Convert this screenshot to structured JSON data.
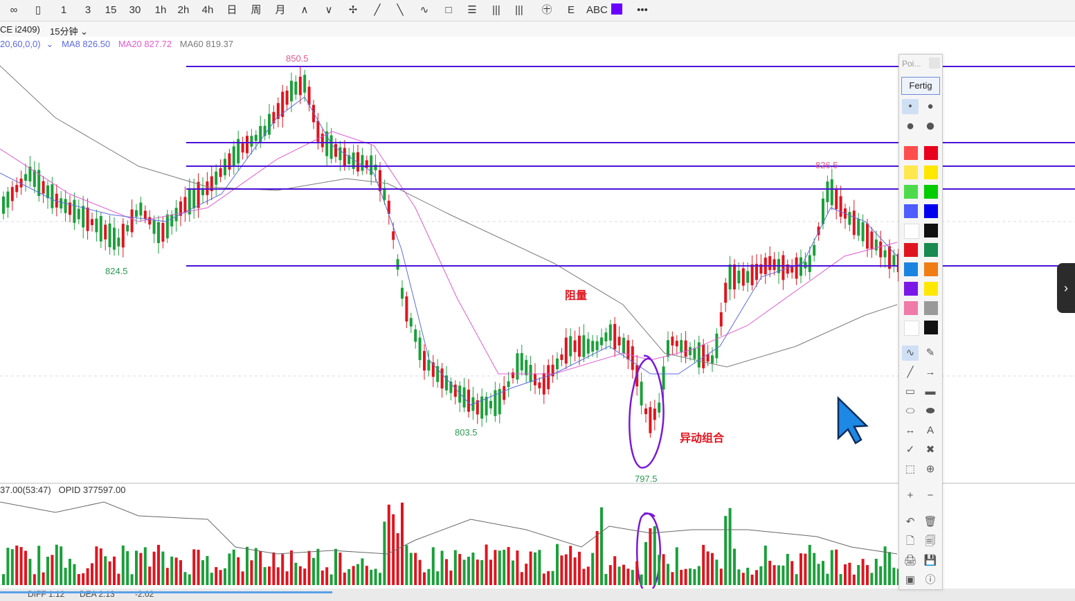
{
  "toolbar": {
    "items": [
      "∞",
      "▯",
      "1",
      "3",
      "15",
      "30",
      "1h",
      "2h",
      "4h",
      "日",
      "周",
      "月",
      "∧",
      "∨",
      "✢",
      "╱",
      "╲",
      "∿",
      "□",
      "☰",
      "|||",
      "|||",
      "㊉",
      "E",
      "ABC",
      "•••"
    ]
  },
  "subbar": {
    "symbol": "CE i2409)",
    "period": "15分钟"
  },
  "ma_legend": {
    "params": "20,60,0,0)",
    "ma8": "MA8 826.50",
    "ma20": "MA20 827.72",
    "ma60": "MA60 819.37"
  },
  "price_labels": {
    "high": "850.5",
    "low_left": "824.5",
    "low_mid": "803.5",
    "low_min": "797.5",
    "high_right": "826.5"
  },
  "annotations": {
    "resistance_volume": "阻量",
    "abnormal_combo": "异动组合"
  },
  "indicator": {
    "vol_text": "37.00(53:47)",
    "opid_text": "OPID 377597.00"
  },
  "macd_line": {
    "diff": "DIFF 1.12",
    "dea": "DEA 2.13",
    "val": "-2.02"
  },
  "panel": {
    "title": "Poi...",
    "done_label": "Fertig",
    "colors": [
      "#ff4d4d",
      "#e8001c",
      "#ffe84d",
      "#ffe800",
      "#4ddb4d",
      "#00cc00",
      "#4d5dff",
      "#0000ee",
      "#ffffff",
      "#111111",
      "#e0141e",
      "#1a8a50",
      "#1b84e0",
      "#f07d14",
      "#7a18e8",
      "#ffe800",
      "#f07aa8",
      "#9a9a9a",
      "#ffffff",
      "#111111"
    ],
    "tools": [
      "∿",
      "✎",
      "╱",
      "→",
      "▭",
      "▬",
      "⬭",
      "⬬",
      "↔",
      "A",
      "✓",
      "✖",
      "⬚",
      "⊕",
      "+",
      "−",
      "↶",
      "🗑",
      "🗋",
      "🗐",
      "🖨",
      "💾",
      "▣",
      "ⓘ"
    ]
  },
  "colors": {
    "up": "#e0141e",
    "down": "#1aa03a",
    "ma8": "#5b6ae0",
    "ma20": "#e05ad0",
    "ma60": "#7a7a7a",
    "hline": "#4b10d8",
    "pen": "#7a18d8"
  }
}
